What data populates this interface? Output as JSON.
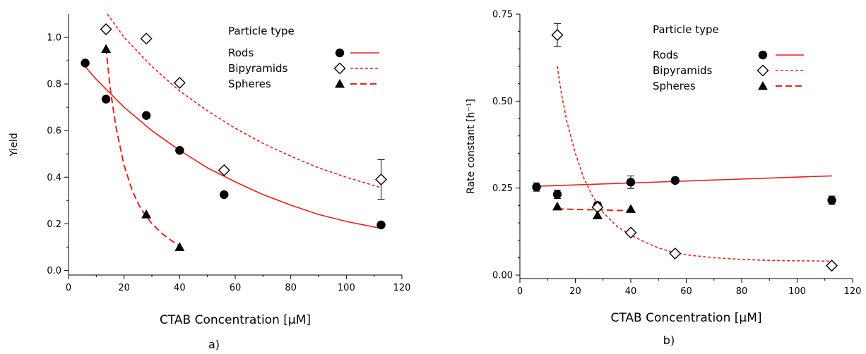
{
  "chart_data": [
    {
      "type": "scatter",
      "panel_label": "a)",
      "xlabel": "CTAB Concentration [μM]",
      "ylabel": "Yield",
      "xlim": [
        0,
        120
      ],
      "ylim": [
        -0.02,
        1.1
      ],
      "xticks": [
        "0",
        "20",
        "40",
        "60",
        "80",
        "100",
        "120"
      ],
      "xtick_values": [
        0,
        20,
        40,
        60,
        80,
        100,
        120
      ],
      "yticks": [
        "0.0",
        "0.2",
        "0.4",
        "0.6",
        "0.8",
        "1.0"
      ],
      "ytick_values": [
        0,
        0.2,
        0.4,
        0.6,
        0.8,
        1.0
      ],
      "legend_title": "Particle type",
      "legend_position": "top-right",
      "series": [
        {
          "name": "Rods",
          "marker": "filled-circle",
          "line_style": "solid",
          "points": [
            {
              "x": 6,
              "y": 0.89
            },
            {
              "x": 13.5,
              "y": 0.735
            },
            {
              "x": 28,
              "y": 0.665
            },
            {
              "x": 40,
              "y": 0.515
            },
            {
              "x": 56,
              "y": 0.325
            },
            {
              "x": 112.5,
              "y": 0.195
            }
          ],
          "fit": {
            "x": [
              5,
              10,
              20,
              30,
              40,
              50,
              60,
              70,
              80,
              90,
              100,
              112.5
            ],
            "y": [
              0.888,
              0.82,
              0.7,
              0.6,
              0.515,
              0.44,
              0.38,
              0.325,
              0.28,
              0.24,
              0.21,
              0.18
            ]
          }
        },
        {
          "name": "Bipyramids",
          "marker": "open-diamond",
          "line_style": "dotted",
          "points": [
            {
              "x": 13.5,
              "y": 1.035
            },
            {
              "x": 28,
              "y": 0.995
            },
            {
              "x": 40,
              "y": 0.805
            },
            {
              "x": 56,
              "y": 0.43
            },
            {
              "x": 112.5,
              "y": 0.39,
              "err": 0.085
            }
          ],
          "fit": {
            "x": [
              14,
              20,
              30,
              40,
              50,
              60,
              70,
              80,
              90,
              100,
              112.5
            ],
            "y": [
              1.1,
              1.0,
              0.875,
              0.77,
              0.685,
              0.61,
              0.545,
              0.49,
              0.44,
              0.4,
              0.355
            ]
          }
        },
        {
          "name": "Spheres",
          "marker": "filled-triangle",
          "line_style": "dashed",
          "points": [
            {
              "x": 13.5,
              "y": 0.95
            },
            {
              "x": 28,
              "y": 0.24
            },
            {
              "x": 40,
              "y": 0.1
            }
          ],
          "fit": {
            "x": [
              13.5,
              15,
              17,
              20,
              23,
              26,
              30,
              34,
              37,
              40
            ],
            "y": [
              0.955,
              0.78,
              0.62,
              0.45,
              0.34,
              0.265,
              0.2,
              0.155,
              0.128,
              0.105
            ]
          }
        }
      ]
    },
    {
      "type": "scatter",
      "panel_label": "b)",
      "xlabel": "CTAB Concentration [μM]",
      "ylabel": "Rate constant [h⁻¹]",
      "xlim": [
        0,
        120
      ],
      "ylim": [
        -0.01,
        0.75
      ],
      "xticks": [
        "0",
        "20",
        "40",
        "60",
        "80",
        "100",
        "120"
      ],
      "xtick_values": [
        0,
        20,
        40,
        60,
        80,
        100,
        120
      ],
      "yticks": [
        "0.00",
        "0.25",
        "0.50",
        "0.75"
      ],
      "ytick_values": [
        0,
        0.25,
        0.5,
        0.75
      ],
      "legend_title": "Particle type",
      "legend_position": "top-right",
      "series": [
        {
          "name": "Rods",
          "marker": "filled-circle",
          "line_style": "solid",
          "points": [
            {
              "x": 6,
              "y": 0.253,
              "err": 0.012
            },
            {
              "x": 13.5,
              "y": 0.232,
              "err": 0.012
            },
            {
              "x": 28,
              "y": 0.2,
              "err": 0.01
            },
            {
              "x": 40,
              "y": 0.267,
              "err": 0.018
            },
            {
              "x": 56,
              "y": 0.272,
              "err": 0.008
            },
            {
              "x": 112.5,
              "y": 0.215,
              "err": 0.012
            }
          ],
          "fit": {
            "x": [
              6,
              112.5
            ],
            "y": [
              0.255,
              0.285
            ]
          }
        },
        {
          "name": "Bipyramids",
          "marker": "open-diamond",
          "line_style": "dotted",
          "points": [
            {
              "x": 13.5,
              "y": 0.69,
              "err": 0.033
            },
            {
              "x": 28,
              "y": 0.195
            },
            {
              "x": 40,
              "y": 0.122
            },
            {
              "x": 56,
              "y": 0.062
            },
            {
              "x": 112.5,
              "y": 0.027
            }
          ],
          "fit": {
            "x": [
              13.5,
              15,
              17,
              20,
              23,
              26,
              30,
              35,
              40,
              45,
              50,
              55,
              60,
              70,
              80,
              90,
              100,
              112.5
            ],
            "y": [
              0.6,
              0.52,
              0.44,
              0.35,
              0.28,
              0.23,
              0.18,
              0.14,
              0.115,
              0.095,
              0.078,
              0.066,
              0.058,
              0.05,
              0.045,
              0.042,
              0.041,
              0.04
            ]
          }
        },
        {
          "name": "Spheres",
          "marker": "filled-triangle",
          "line_style": "dashed",
          "points": [
            {
              "x": 13.5,
              "y": 0.197
            },
            {
              "x": 28,
              "y": 0.172
            },
            {
              "x": 40,
              "y": 0.19
            }
          ],
          "fit": {
            "x": [
              13.5,
              40
            ],
            "y": [
              0.19,
              0.185
            ]
          }
        }
      ]
    }
  ]
}
